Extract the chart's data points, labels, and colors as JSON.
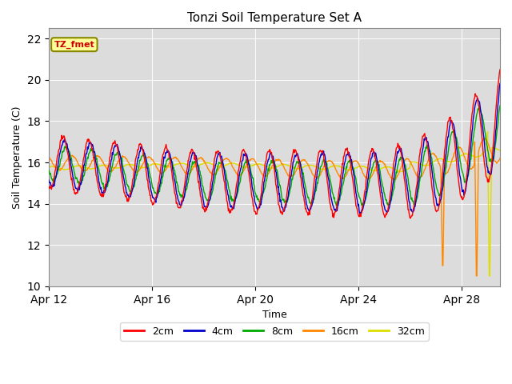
{
  "title": "Tonzi Soil Temperature Set A",
  "xlabel": "Time",
  "ylabel": "Soil Temperature (C)",
  "ylim": [
    10,
    22.5
  ],
  "yticks": [
    10,
    12,
    14,
    16,
    18,
    20,
    22
  ],
  "xtick_labels": [
    "Apr 12",
    "Apr 16",
    "Apr 20",
    "Apr 24",
    "Apr 28"
  ],
  "xtick_positions": [
    12,
    16,
    20,
    24,
    28
  ],
  "fig_bg": "#ffffff",
  "plot_bg": "#dcdcdc",
  "line_colors": {
    "2cm": "#ff0000",
    "4cm": "#0000cc",
    "8cm": "#00aa00",
    "16cm": "#ff8800",
    "32cm": "#dddd00"
  },
  "annotation_text": "TZ_fmet",
  "annotation_bg": "#ffff99",
  "annotation_border": "#888800",
  "annotation_text_color": "#cc0000"
}
